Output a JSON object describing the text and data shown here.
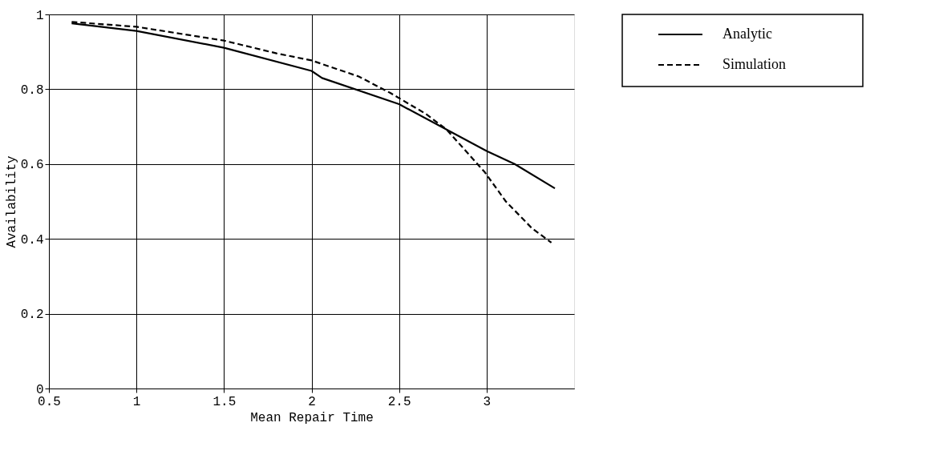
{
  "chart_data": {
    "type": "line",
    "xlabel": "Mean Repair Time",
    "ylabel": "Availability",
    "xlim": [
      0.5,
      3.5
    ],
    "xticks": [
      0.5,
      1,
      1.5,
      2,
      2.5,
      3
    ],
    "ylim": [
      0,
      1
    ],
    "yticks": [
      0,
      0.2,
      0.4,
      0.6,
      0.8,
      1
    ],
    "grid": true,
    "legend": "top right",
    "marker": "none",
    "series": [
      {
        "name": "Analytic",
        "color": "#000000",
        "line_style": "solid",
        "x": [
          0.63,
          1,
          1.5,
          2,
          2.06,
          2.5,
          3,
          3.16,
          3.39
        ],
        "values": [
          0.976,
          0.956,
          0.911,
          0.849,
          0.83,
          0.76,
          0.635,
          0.6,
          0.535
        ]
      },
      {
        "name": "Simulation",
        "color": "#000000",
        "line_style": "dashed",
        "x": [
          0.63,
          1,
          1.5,
          1.8,
          2,
          2.27,
          2.45,
          2.65,
          2.77,
          2.99,
          3.11,
          3.26,
          3.37
        ],
        "values": [
          0.98,
          0.967,
          0.93,
          0.896,
          0.877,
          0.834,
          0.79,
          0.735,
          0.693,
          0.578,
          0.5,
          0.428,
          0.39
        ]
      }
    ]
  }
}
